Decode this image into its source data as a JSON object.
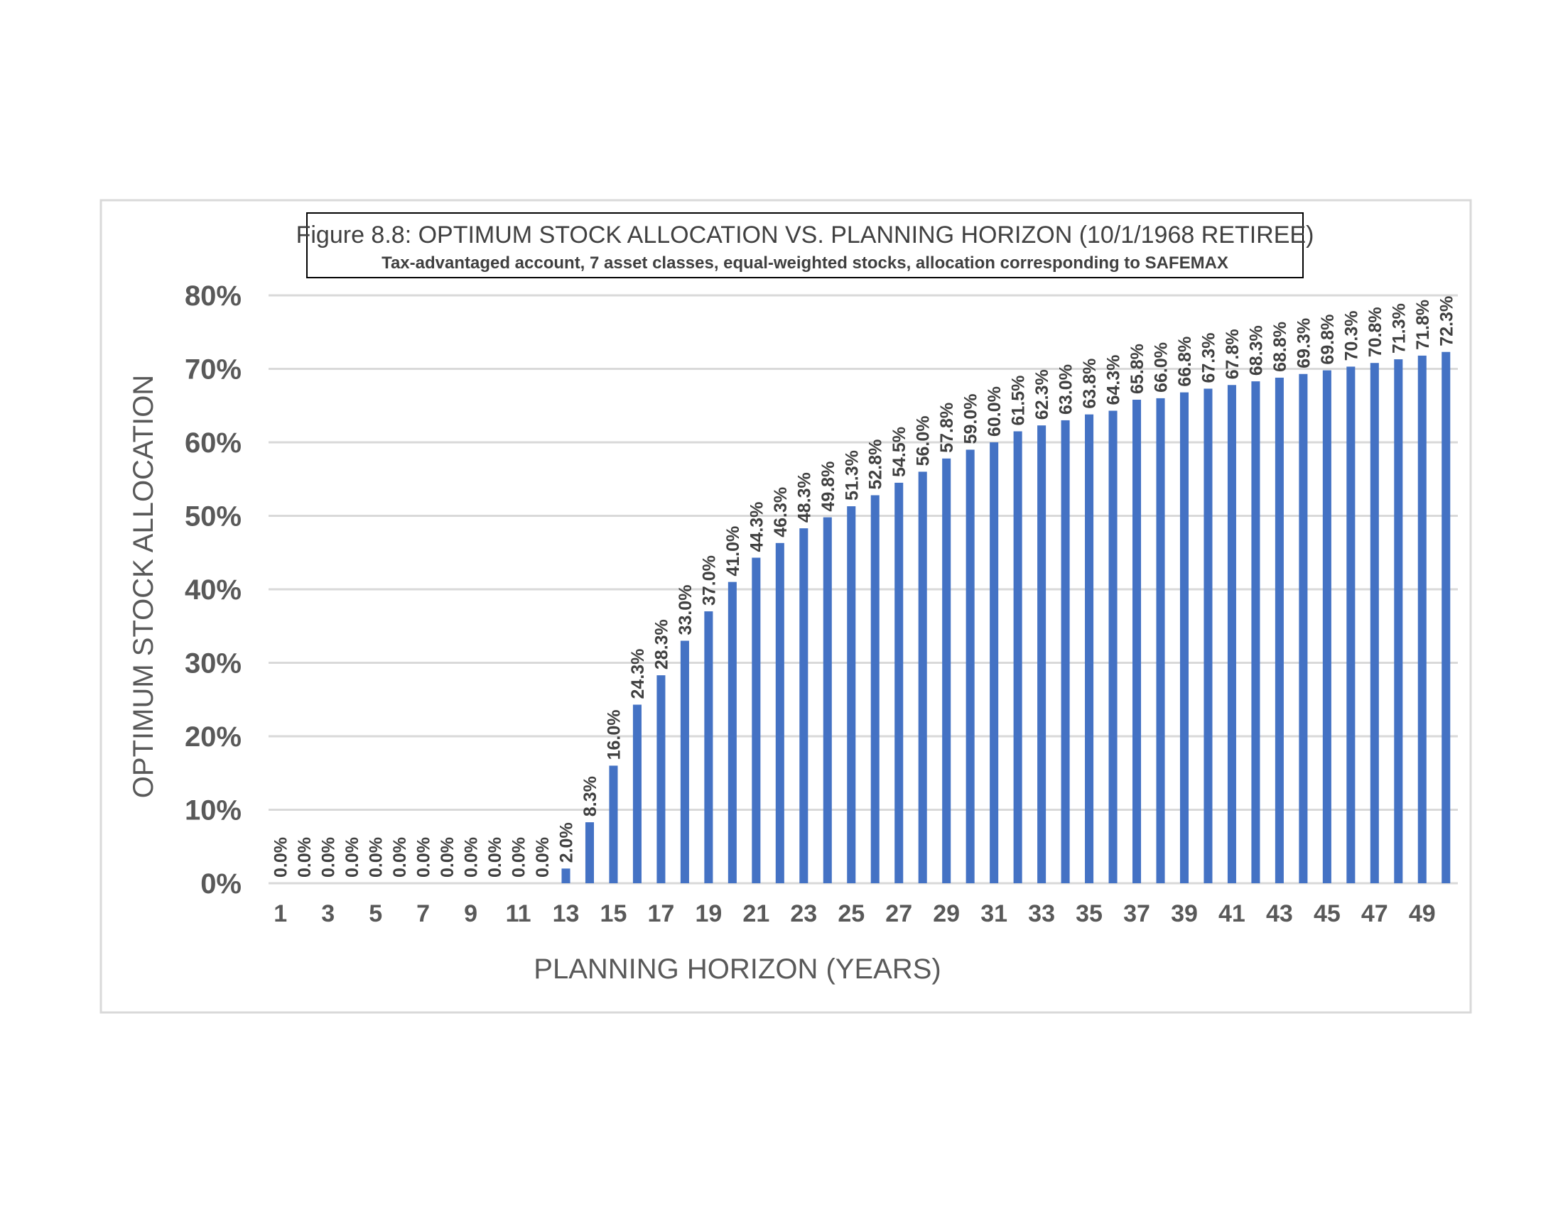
{
  "chart_data": {
    "type": "bar",
    "title": "Figure 8.8: OPTIMUM STOCK ALLOCATION VS. PLANNING HORIZON (10/1/1968 RETIREE)",
    "subtitle": "Tax-advantaged account, 7 asset classes, equal-weighted stocks, allocation corresponding to SAFEMAX",
    "xlabel": "PLANNING HORIZON (YEARS)",
    "ylabel": "OPTIMUM STOCK ALLOCATION",
    "ylim": [
      0,
      80
    ],
    "y_ticks": [
      "0%",
      "10%",
      "20%",
      "30%",
      "40%",
      "50%",
      "60%",
      "70%",
      "80%"
    ],
    "x_tick_labels": [
      "1",
      "3",
      "5",
      "7",
      "9",
      "11",
      "13",
      "15",
      "17",
      "19",
      "21",
      "23",
      "25",
      "27",
      "29",
      "31",
      "33",
      "35",
      "37",
      "39",
      "41",
      "43",
      "45",
      "47",
      "49"
    ],
    "categories": [
      "1",
      "2",
      "3",
      "4",
      "5",
      "6",
      "7",
      "8",
      "9",
      "10",
      "11",
      "12",
      "13",
      "14",
      "15",
      "16",
      "17",
      "18",
      "19",
      "20",
      "21",
      "22",
      "23",
      "24",
      "25",
      "26",
      "27",
      "28",
      "29",
      "30",
      "31",
      "32",
      "33",
      "34",
      "35",
      "36",
      "37",
      "38",
      "39",
      "40",
      "41",
      "42",
      "43",
      "44",
      "45",
      "46",
      "47",
      "48",
      "49",
      "50"
    ],
    "values": [
      0.0,
      0.0,
      0.0,
      0.0,
      0.0,
      0.0,
      0.0,
      0.0,
      0.0,
      0.0,
      0.0,
      0.0,
      2.0,
      8.3,
      16.0,
      24.3,
      28.3,
      33.0,
      37.0,
      41.0,
      44.3,
      46.3,
      48.3,
      49.8,
      51.3,
      52.8,
      54.5,
      56.0,
      57.8,
      59.0,
      60.0,
      61.5,
      62.3,
      63.0,
      63.8,
      64.3,
      65.8,
      66.0,
      66.8,
      67.3,
      67.8,
      68.3,
      68.8,
      69.3,
      69.8,
      70.3,
      70.8,
      71.3,
      71.8,
      72.3
    ],
    "data_labels": [
      "0.0%",
      "0.0%",
      "0.0%",
      "0.0%",
      "0.0%",
      "0.0%",
      "0.0%",
      "0.0%",
      "0.0%",
      "0.0%",
      "0.0%",
      "0.0%",
      "2.0%",
      "8.3%",
      "16.0%",
      "24.3%",
      "28.3%",
      "33.0%",
      "37.0%",
      "41.0%",
      "44.3%",
      "46.3%",
      "48.3%",
      "49.8%",
      "51.3%",
      "52.8%",
      "54.5%",
      "56.0%",
      "57.8%",
      "59.0%",
      "60.0%",
      "61.5%",
      "62.3%",
      "63.0%",
      "63.8%",
      "64.3%",
      "65.8%",
      "66.0%",
      "66.8%",
      "67.3%",
      "67.8%",
      "68.3%",
      "68.8%",
      "69.3%",
      "69.8%",
      "70.3%",
      "70.8%",
      "71.3%",
      "71.8%",
      "72.3%"
    ],
    "grid": true,
    "legend": "none",
    "colors": {
      "bar": "#4472C4",
      "grid": "#D9D9D9",
      "text": "#595959",
      "frame": "#D9D9D9"
    }
  }
}
